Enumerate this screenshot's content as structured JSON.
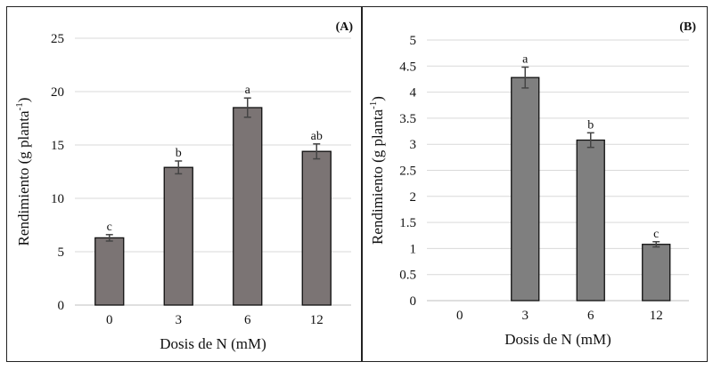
{
  "chart_data": [
    {
      "type": "bar",
      "panel_label": "(A)",
      "categories": [
        "0",
        "3",
        "6",
        "12"
      ],
      "values": [
        6.3,
        12.9,
        18.5,
        14.4
      ],
      "errors": [
        0.3,
        0.6,
        0.9,
        0.7
      ],
      "significance": [
        "c",
        "b",
        "a",
        "ab"
      ],
      "xlabel": "Dosis de N (mM)",
      "ylabel": "Rendimiento (g planta",
      "ylabel_sup": "-1",
      "ylabel_end": ")",
      "ylim": [
        0,
        25
      ],
      "yticks": [
        "0",
        "5",
        "10",
        "15",
        "20",
        "25"
      ],
      "grid": true,
      "bar_color": "#7b7474"
    },
    {
      "type": "bar",
      "panel_label": "(B)",
      "categories": [
        "0",
        "3",
        "6",
        "12"
      ],
      "values": [
        0,
        4.28,
        3.08,
        1.08
      ],
      "errors": [
        0,
        0.2,
        0.14,
        0.05
      ],
      "significance": [
        "",
        "a",
        "b",
        "c"
      ],
      "xlabel": "Dosis de N (mM)",
      "ylabel": "Rendimiento (g planta",
      "ylabel_sup": "-1",
      "ylabel_end": ")",
      "ylim": [
        0,
        5
      ],
      "yticks": [
        "0",
        "0.5",
        "1",
        "1.5",
        "2",
        "2.5",
        "3",
        "3.5",
        "4",
        "4.5",
        "5"
      ],
      "grid": true,
      "bar_color": "#7f7f7f"
    }
  ]
}
